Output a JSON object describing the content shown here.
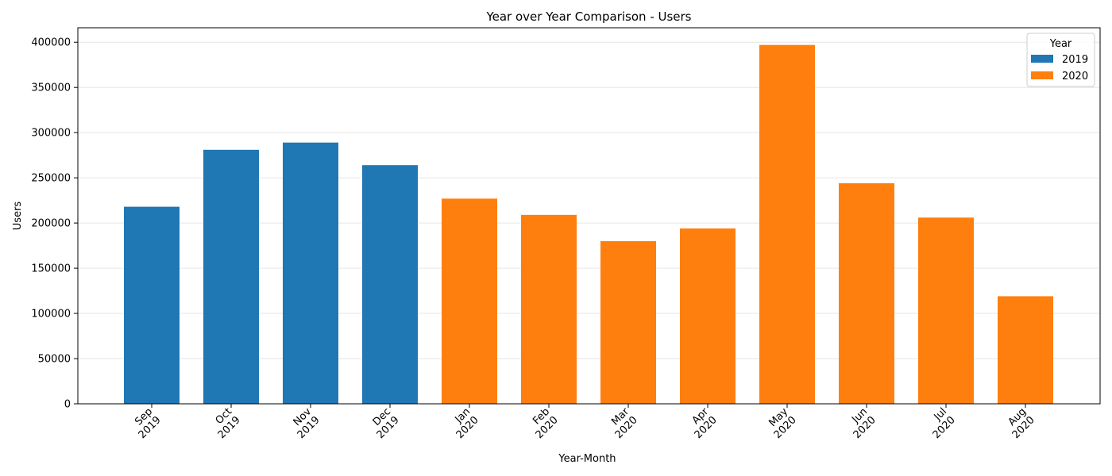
{
  "chart_data": {
    "type": "bar",
    "title": "Year over Year Comparison - Users",
    "xlabel": "Year-Month",
    "ylabel": "Users",
    "ylim": [
      0,
      416000
    ],
    "yticks": [
      0,
      50000,
      100000,
      150000,
      200000,
      250000,
      300000,
      350000,
      400000
    ],
    "grid": "horizontal",
    "categories": [
      {
        "month": "Sep",
        "year": "2019"
      },
      {
        "month": "Oct",
        "year": "2019"
      },
      {
        "month": "Nov",
        "year": "2019"
      },
      {
        "month": "Dec",
        "year": "2019"
      },
      {
        "month": "Jan",
        "year": "2020"
      },
      {
        "month": "Feb",
        "year": "2020"
      },
      {
        "month": "Mar",
        "year": "2020"
      },
      {
        "month": "Apr",
        "year": "2020"
      },
      {
        "month": "May",
        "year": "2020"
      },
      {
        "month": "Jun",
        "year": "2020"
      },
      {
        "month": "Jul",
        "year": "2020"
      },
      {
        "month": "Aug",
        "year": "2020"
      }
    ],
    "series": [
      {
        "name": "2019",
        "color": "#1f77b4",
        "values": [
          218000,
          281000,
          289000,
          264000,
          null,
          null,
          null,
          null,
          null,
          null,
          null,
          null
        ]
      },
      {
        "name": "2020",
        "color": "#ff7f0e",
        "values": [
          null,
          null,
          null,
          null,
          227000,
          209000,
          180000,
          194000,
          397000,
          244000,
          206000,
          119000
        ]
      }
    ],
    "legend": {
      "title": "Year",
      "placement": "top-right"
    }
  }
}
